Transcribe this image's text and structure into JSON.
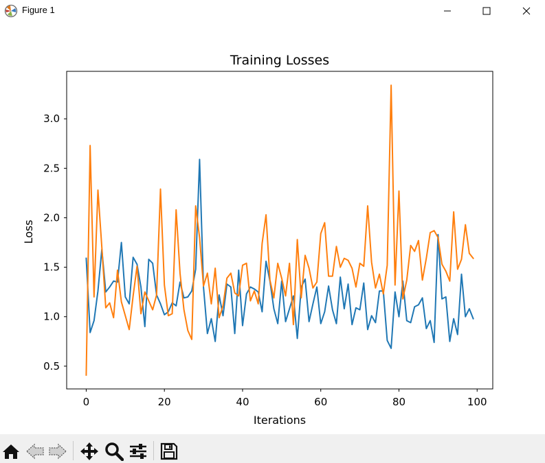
{
  "window": {
    "title": "Figure 1",
    "icon": "matplotlib-icon",
    "buttons": [
      "minimize-icon",
      "maximize-icon",
      "close-icon"
    ]
  },
  "toolbar": {
    "icons": [
      "home-icon",
      "back-arrow-icon",
      "forward-arrow-icon",
      "pan-icon",
      "zoom-icon",
      "configure-subplots-icon",
      "save-icon"
    ]
  },
  "colors": {
    "series1": "#1f77b4",
    "series2": "#ff7f0e"
  },
  "chart_data": {
    "type": "line",
    "title": "Training Losses",
    "xlabel": "Iterations",
    "ylabel": "Loss",
    "xlim": [
      -5,
      104
    ],
    "ylim": [
      0.27,
      3.48
    ],
    "xticks": [
      0,
      20,
      40,
      60,
      80,
      100
    ],
    "xtick_labels": [
      "0",
      "20",
      "40",
      "60",
      "80",
      "100"
    ],
    "yticks": [
      0.5,
      1.0,
      1.5,
      2.0,
      2.5,
      3.0
    ],
    "ytick_labels": [
      "0.5",
      "1.0",
      "1.5",
      "2.0",
      "2.5",
      "3.0"
    ],
    "grid": false,
    "legend": "none",
    "x": [
      0,
      1,
      2,
      3,
      4,
      5,
      6,
      7,
      8,
      9,
      10,
      11,
      12,
      13,
      14,
      15,
      16,
      17,
      18,
      19,
      20,
      21,
      22,
      23,
      24,
      25,
      26,
      27,
      28,
      29,
      30,
      31,
      32,
      33,
      34,
      35,
      36,
      37,
      38,
      39,
      40,
      41,
      42,
      43,
      44,
      45,
      46,
      47,
      48,
      49,
      50,
      51,
      52,
      53,
      54,
      55,
      56,
      57,
      58,
      59,
      60,
      61,
      62,
      63,
      64,
      65,
      66,
      67,
      68,
      69,
      70,
      71,
      72,
      73,
      74,
      75,
      76,
      77,
      78,
      79,
      80,
      81,
      82,
      83,
      84,
      85,
      86,
      87,
      88,
      89,
      90,
      91,
      92,
      93,
      94,
      95,
      96,
      97,
      98,
      99
    ],
    "series": [
      {
        "values": [
          1.59,
          0.84,
          0.96,
          1.26,
          1.68,
          1.25,
          1.3,
          1.36,
          1.35,
          1.75,
          1.2,
          1.13,
          1.6,
          1.53,
          1.3,
          0.9,
          1.58,
          1.54,
          1.22,
          1.13,
          1.02,
          1.05,
          1.14,
          1.11,
          1.35,
          1.19,
          1.2,
          1.26,
          1.48,
          2.59,
          1.3,
          0.83,
          0.98,
          0.75,
          1.22,
          1.01,
          1.33,
          1.3,
          0.83,
          1.47,
          0.91,
          1.23,
          1.3,
          1.28,
          1.25,
          1.05,
          1.56,
          1.36,
          1.08,
          0.93,
          1.36,
          0.95,
          1.08,
          1.21,
          0.78,
          1.3,
          1.38,
          0.95,
          1.13,
          1.3,
          0.93,
          1.05,
          1.31,
          1.07,
          0.93,
          1.4,
          1.08,
          1.33,
          0.92,
          1.09,
          1.07,
          1.34,
          0.87,
          1.01,
          0.94,
          1.26,
          1.26,
          0.76,
          0.68,
          1.25,
          1.0,
          1.36,
          0.96,
          0.94,
          1.1,
          1.12,
          1.19,
          0.88,
          0.96,
          0.74,
          1.83,
          1.18,
          1.2,
          0.75,
          0.98,
          0.82,
          1.43,
          1.0,
          1.08,
          0.98
        ]
      },
      {
        "values": [
          0.41,
          2.73,
          1.2,
          2.28,
          1.7,
          1.09,
          1.14,
          0.99,
          1.47,
          1.15,
          1.01,
          0.87,
          1.21,
          1.51,
          1.03,
          1.25,
          1.16,
          1.07,
          1.22,
          2.29,
          1.32,
          1.01,
          1.03,
          2.08,
          1.44,
          1.07,
          0.86,
          0.77,
          2.12,
          1.8,
          1.31,
          1.44,
          1.13,
          1.49,
          0.99,
          1.11,
          1.39,
          1.44,
          1.24,
          1.21,
          1.52,
          1.54,
          1.16,
          1.26,
          1.13,
          1.74,
          2.03,
          1.37,
          1.19,
          1.54,
          1.39,
          1.21,
          1.54,
          0.92,
          1.78,
          1.19,
          1.62,
          1.49,
          1.29,
          1.35,
          1.84,
          1.95,
          1.41,
          1.41,
          1.71,
          1.5,
          1.59,
          1.57,
          1.49,
          1.3,
          1.54,
          1.51,
          2.12,
          1.55,
          1.29,
          1.43,
          1.23,
          1.52,
          3.34,
          1.32,
          2.27,
          1.18,
          1.37,
          1.72,
          1.66,
          1.77,
          1.37,
          1.59,
          1.85,
          1.87,
          1.8,
          1.53,
          1.46,
          1.36,
          2.06,
          1.48,
          1.58,
          1.93,
          1.64,
          1.59
        ]
      }
    ]
  }
}
